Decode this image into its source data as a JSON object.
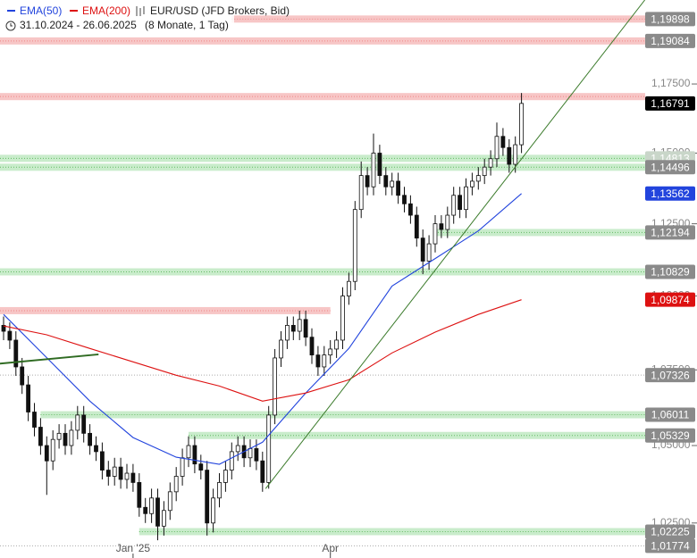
{
  "chart_data": {
    "type": "candlestick",
    "title": "EUR/USD (JFD Brokers, Bid)",
    "subtitle": "31.10.2024 - 26.06.2025",
    "period": "(8 Monate, 1 Tag)",
    "log_scale": true,
    "ylim": [
      1.0139,
      1.2061
    ],
    "yticks": [
      {
        "value": 1.175,
        "label": "1,17500"
      },
      {
        "value": 1.15,
        "label": "1,15000"
      },
      {
        "value": 1.125,
        "label": "1,12500"
      },
      {
        "value": 1.1,
        "label": "1,10000"
      },
      {
        "value": 1.075,
        "label": "1,07500"
      },
      {
        "value": 1.05,
        "label": "1,05000"
      },
      {
        "value": 1.025,
        "label": "1,02500"
      }
    ],
    "categories": [
      null,
      null,
      null,
      null,
      null,
      null,
      null,
      null,
      null,
      null,
      null,
      null,
      null,
      null,
      null,
      null,
      null,
      null,
      null,
      null,
      null,
      "Jan '25",
      null,
      null,
      null,
      null,
      null,
      null,
      null,
      null,
      null,
      null,
      null,
      null,
      null,
      null,
      null,
      null,
      null,
      null,
      null,
      null,
      null,
      null,
      null,
      null,
      null,
      null,
      null,
      null,
      null,
      null,
      null,
      "Apr",
      null,
      null,
      null,
      null,
      null,
      null,
      null,
      null,
      null,
      null,
      null,
      null,
      null,
      null,
      null,
      null,
      null,
      null,
      null,
      null,
      null,
      null,
      null,
      null,
      null,
      null,
      null,
      null,
      null,
      null,
      null
    ],
    "open": [
      1.09,
      1.088,
      1.085,
      1.076,
      1.07,
      1.061,
      1.056,
      1.05,
      1.045,
      1.052,
      1.054,
      1.05,
      1.055,
      1.06,
      1.054,
      1.05,
      1.048,
      1.042,
      1.04,
      1.043,
      1.039,
      1.041,
      1.038,
      1.03,
      1.028,
      1.033,
      1.024,
      1.029,
      1.035,
      1.04,
      1.046,
      1.05,
      1.044,
      1.042,
      1.025,
      1.033,
      1.038,
      1.042,
      1.048,
      1.05,
      1.046,
      1.049,
      1.045,
      1.038,
      1.06,
      1.079,
      1.085,
      1.09,
      1.088,
      1.092,
      1.086,
      1.08,
      1.076,
      1.08,
      1.082,
      1.085,
      1.1,
      1.105,
      1.13,
      1.142,
      1.138,
      1.15,
      1.142,
      1.138,
      1.14,
      1.135,
      1.132,
      1.128,
      1.12,
      1.112,
      1.118,
      1.125,
      1.123,
      1.128,
      1.135,
      1.13,
      1.138,
      1.14,
      1.142,
      1.145,
      1.148,
      1.156,
      1.152,
      1.146,
      1.153
    ],
    "high": [
      1.093,
      1.091,
      1.088,
      1.079,
      1.073,
      1.064,
      1.059,
      1.053,
      1.055,
      1.057,
      1.057,
      1.058,
      1.063,
      1.063,
      1.057,
      1.053,
      1.051,
      1.045,
      1.046,
      1.046,
      1.044,
      1.044,
      1.041,
      1.033,
      1.036,
      1.036,
      1.032,
      1.038,
      1.043,
      1.049,
      1.053,
      1.053,
      1.047,
      1.045,
      1.036,
      1.041,
      1.045,
      1.051,
      1.053,
      1.053,
      1.052,
      1.052,
      1.048,
      1.063,
      1.082,
      1.088,
      1.093,
      1.093,
      1.095,
      1.095,
      1.089,
      1.083,
      1.083,
      1.085,
      1.088,
      1.103,
      1.108,
      1.133,
      1.147,
      1.145,
      1.157,
      1.153,
      1.145,
      1.143,
      1.143,
      1.138,
      1.135,
      1.131,
      1.123,
      1.121,
      1.128,
      1.128,
      1.131,
      1.138,
      1.138,
      1.141,
      1.143,
      1.145,
      1.148,
      1.151,
      1.161,
      1.159,
      1.155,
      1.156,
      1.1717
    ],
    "low": [
      1.085,
      1.082,
      1.073,
      1.067,
      1.058,
      1.053,
      1.047,
      1.034,
      1.042,
      1.049,
      1.047,
      1.047,
      1.052,
      1.051,
      1.047,
      1.045,
      1.039,
      1.037,
      1.037,
      1.036,
      1.036,
      1.035,
      1.027,
      1.025,
      1.025,
      1.0195,
      1.021,
      1.026,
      1.032,
      1.037,
      1.043,
      1.041,
      1.039,
      1.021,
      1.022,
      1.03,
      1.035,
      1.039,
      1.045,
      1.043,
      1.043,
      1.042,
      1.035,
      1.036,
      1.057,
      1.076,
      1.082,
      1.085,
      1.085,
      1.083,
      1.077,
      1.073,
      1.073,
      1.077,
      1.079,
      1.082,
      1.097,
      1.102,
      1.127,
      1.135,
      1.135,
      1.139,
      1.135,
      1.135,
      1.132,
      1.129,
      1.125,
      1.117,
      1.1075,
      1.109,
      1.115,
      1.12,
      1.12,
      1.125,
      1.127,
      1.127,
      1.135,
      1.137,
      1.139,
      1.142,
      1.145,
      1.149,
      1.143,
      1.143,
      1.15
    ],
    "close": [
      1.088,
      1.085,
      1.076,
      1.07,
      1.061,
      1.056,
      1.05,
      1.045,
      1.052,
      1.054,
      1.05,
      1.055,
      1.06,
      1.054,
      1.05,
      1.048,
      1.042,
      1.04,
      1.043,
      1.039,
      1.041,
      1.038,
      1.03,
      1.028,
      1.033,
      1.024,
      1.029,
      1.035,
      1.04,
      1.046,
      1.05,
      1.044,
      1.042,
      1.025,
      1.033,
      1.038,
      1.042,
      1.048,
      1.05,
      1.046,
      1.049,
      1.045,
      1.038,
      1.06,
      1.079,
      1.085,
      1.09,
      1.088,
      1.092,
      1.086,
      1.08,
      1.076,
      1.08,
      1.082,
      1.085,
      1.1,
      1.105,
      1.13,
      1.142,
      1.138,
      1.15,
      1.142,
      1.138,
      1.14,
      1.135,
      1.132,
      1.128,
      1.12,
      1.112,
      1.118,
      1.125,
      1.123,
      1.128,
      1.135,
      1.13,
      1.138,
      1.14,
      1.142,
      1.145,
      1.148,
      1.156,
      1.152,
      1.146,
      1.153,
      1.16791
    ],
    "close_label": "1,16791",
    "series": [
      {
        "name": "EMA(50)",
        "color": "#2244dd",
        "x": [
          0,
          7,
          14,
          21,
          28,
          35,
          42,
          49,
          56,
          63,
          70,
          77,
          84
        ],
        "values": [
          1.0937,
          1.0791,
          1.0646,
          1.0526,
          1.0462,
          1.0439,
          1.0511,
          1.0673,
          1.0822,
          1.1034,
          1.1129,
          1.1225,
          1.13562
        ],
        "last_label": "1,13562"
      },
      {
        "name": "EMA(200)",
        "color": "#dd1111",
        "x": [
          0,
          7,
          14,
          21,
          28,
          35,
          42,
          49,
          56,
          63,
          70,
          77,
          84
        ],
        "values": [
          1.0898,
          1.0868,
          1.0822,
          1.0777,
          1.0732,
          1.0696,
          1.0646,
          1.0673,
          1.0717,
          1.0807,
          1.0877,
          1.0937,
          1.09874
        ],
        "last_label": "1,09874"
      }
    ],
    "levels": [
      {
        "value": 1.19898,
        "label": "1,19898",
        "color": "red",
        "from": 37
      },
      {
        "value": 1.19084,
        "label": "1,19084",
        "color": "red"
      },
      {
        "value": 1.1704,
        "color": "red"
      },
      {
        "value": 1.14813,
        "label": "1,14813",
        "color": "green"
      },
      {
        "value": 1.14496,
        "label": "1,14496",
        "color": "green"
      },
      {
        "value": 1.12194,
        "label": "1,12194",
        "color": "green",
        "from": 70
      },
      {
        "value": 1.10829,
        "label": "1,10829",
        "color": "green"
      },
      {
        "value": 1.095,
        "color": "red",
        "to": 53
      },
      {
        "value": 1.07326,
        "label": "1,07326",
        "color": "gray"
      },
      {
        "value": 1.06011,
        "label": "1,06011",
        "color": "green",
        "from": 6
      },
      {
        "value": 1.05329,
        "label": "1,05329",
        "color": "green",
        "from": 30
      },
      {
        "value": 1.02225,
        "label": "1,02225",
        "color": "green",
        "from": 22
      },
      {
        "value": 1.01774,
        "label": "1,01774",
        "color": "gray"
      }
    ],
    "trendlines": [
      {
        "color": "#3a7a2a",
        "x": [
          42.5,
          104
        ],
        "values": [
          1.036,
          1.2061
        ]
      },
      {
        "color": "#2f6b22",
        "x": [
          -0.6,
          15.4
        ],
        "values": [
          1.0771,
          1.0802
        ]
      }
    ]
  }
}
